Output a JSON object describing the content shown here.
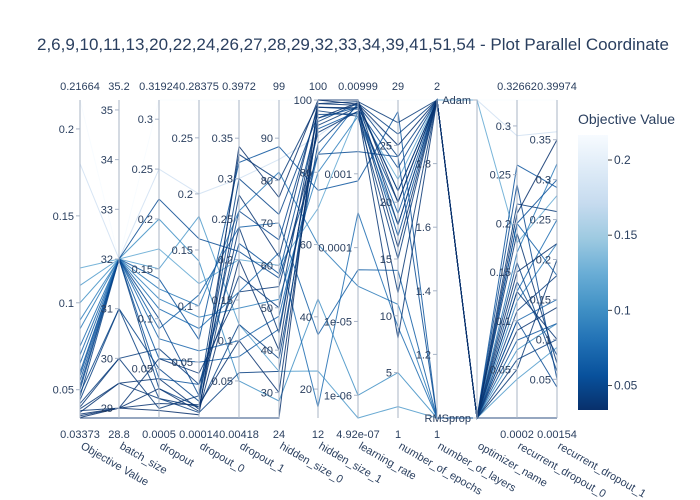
{
  "chart_data": {
    "type": "parallel_coordinates",
    "title": "2,6,9,10,11,13,20,22,24,26,27,28,29,32,33,34,39,41,51,54 - Plot Parallel Coordinate",
    "colorbar": {
      "title": "Objective Value",
      "ticks": [
        "0.2",
        "0.15",
        "0.1",
        "0.05"
      ],
      "tick_values": [
        0.2,
        0.15,
        0.1,
        0.05
      ],
      "range": [
        0.03373,
        0.21664
      ],
      "colorscale": [
        "#08306b",
        "#08519c",
        "#2171b5",
        "#4292c6",
        "#6baed6",
        "#9ecae1",
        "#c6dbef",
        "#deebf7",
        "#f7fbff"
      ]
    },
    "dimensions": [
      {
        "name": "Objective Value",
        "min_label": "0.03373",
        "max_label": "0.21664",
        "min": 0.03373,
        "max": 0.21664,
        "scale": "linear",
        "ticks": [
          {
            "v": 0.2,
            "label": "0.2"
          },
          {
            "v": 0.15,
            "label": "0.15"
          },
          {
            "v": 0.1,
            "label": "0.1"
          },
          {
            "v": 0.05,
            "label": "0.05"
          }
        ]
      },
      {
        "name": "batch_size",
        "min_label": "28.8",
        "max_label": "35.2",
        "min": 28.8,
        "max": 35.2,
        "scale": "linear",
        "ticks": [
          {
            "v": 35,
            "label": "35"
          },
          {
            "v": 34,
            "label": "34"
          },
          {
            "v": 33,
            "label": "33"
          },
          {
            "v": 32,
            "label": "32"
          },
          {
            "v": 31,
            "label": "31"
          },
          {
            "v": 30,
            "label": "30"
          },
          {
            "v": 29,
            "label": "29"
          }
        ]
      },
      {
        "name": "dropout",
        "min_label": "0.0005",
        "max_label": "0.31924",
        "min": 0.0005,
        "max": 0.31924,
        "scale": "linear",
        "ticks": [
          {
            "v": 0.3,
            "label": "0.3"
          },
          {
            "v": 0.25,
            "label": "0.25"
          },
          {
            "v": 0.2,
            "label": "0.2"
          },
          {
            "v": 0.15,
            "label": "0.15"
          },
          {
            "v": 0.1,
            "label": "0.1"
          },
          {
            "v": 0.05,
            "label": "0.05"
          }
        ]
      },
      {
        "name": "dropout_0",
        "min_label": "0.00014",
        "max_label": "0.28375",
        "min": 0.00014,
        "max": 0.28375,
        "scale": "linear",
        "ticks": [
          {
            "v": 0.25,
            "label": "0.25"
          },
          {
            "v": 0.2,
            "label": "0.2"
          },
          {
            "v": 0.15,
            "label": "0.15"
          },
          {
            "v": 0.1,
            "label": "0.1"
          },
          {
            "v": 0.05,
            "label": "0.05"
          }
        ]
      },
      {
        "name": "dropout_1",
        "min_label": "0.00418",
        "max_label": "0.3972",
        "min": 0.00418,
        "max": 0.3972,
        "scale": "linear",
        "ticks": [
          {
            "v": 0.35,
            "label": "0.35"
          },
          {
            "v": 0.3,
            "label": "0.3"
          },
          {
            "v": 0.25,
            "label": "0.25"
          },
          {
            "v": 0.2,
            "label": "0.2"
          },
          {
            "v": 0.15,
            "label": "0.15"
          },
          {
            "v": 0.1,
            "label": "0.1"
          },
          {
            "v": 0.05,
            "label": "0.05"
          }
        ]
      },
      {
        "name": "hidden_size_0",
        "min_label": "24",
        "max_label": "99",
        "min": 24,
        "max": 99,
        "scale": "linear",
        "ticks": [
          {
            "v": 90,
            "label": "90"
          },
          {
            "v": 80,
            "label": "80"
          },
          {
            "v": 70,
            "label": "70"
          },
          {
            "v": 60,
            "label": "60"
          },
          {
            "v": 50,
            "label": "50"
          },
          {
            "v": 40,
            "label": "40"
          },
          {
            "v": 30,
            "label": "30"
          }
        ]
      },
      {
        "name": "hidden_size_1",
        "min_label": "12",
        "max_label": "100",
        "min": 12,
        "max": 100,
        "scale": "linear",
        "ticks": [
          {
            "v": 100,
            "label": "100"
          },
          {
            "v": 80,
            "label": "80"
          },
          {
            "v": 60,
            "label": "60"
          },
          {
            "v": 40,
            "label": "40"
          },
          {
            "v": 20,
            "label": "20"
          }
        ]
      },
      {
        "name": "learning_rate",
        "min_label": "4.92e-07",
        "max_label": "0.00999",
        "min": 4.92e-07,
        "max": 0.00999,
        "scale": "log",
        "ticks": [
          {
            "v": 0.001,
            "label": "0.001"
          },
          {
            "v": 0.0001,
            "label": "0.0001"
          },
          {
            "v": 1e-05,
            "label": "1e-05"
          },
          {
            "v": 1e-06,
            "label": "1e-06"
          }
        ]
      },
      {
        "name": "number_of_epochs",
        "min_label": "1",
        "max_label": "29",
        "min": 1,
        "max": 29,
        "scale": "linear",
        "ticks": [
          {
            "v": 25,
            "label": "25"
          },
          {
            "v": 20,
            "label": "20"
          },
          {
            "v": 15,
            "label": "15"
          },
          {
            "v": 10,
            "label": "10"
          },
          {
            "v": 5,
            "label": "5"
          }
        ]
      },
      {
        "name": "number_of_layers",
        "min_label": "1",
        "max_label": "2",
        "min": 1,
        "max": 2,
        "scale": "linear",
        "ticks": [
          {
            "v": 1.8,
            "label": "1.8"
          },
          {
            "v": 1.6,
            "label": "1.6"
          },
          {
            "v": 1.4,
            "label": "1.4"
          },
          {
            "v": 1.2,
            "label": "1.2"
          }
        ]
      },
      {
        "name": "optimizer_name",
        "min_label": "",
        "max_label": "",
        "min": 0,
        "max": 1,
        "scale": "categorical",
        "ticks": [
          {
            "v": 1,
            "label": "Adam"
          },
          {
            "v": 0,
            "label": "RMSprop"
          }
        ]
      },
      {
        "name": "recurrent_dropout_0",
        "min_label": "0.0002",
        "max_label": "0.32662",
        "min": 0.0002,
        "max": 0.32662,
        "scale": "linear",
        "ticks": [
          {
            "v": 0.3,
            "label": "0.3"
          },
          {
            "v": 0.25,
            "label": "0.25"
          },
          {
            "v": 0.2,
            "label": "0.2"
          },
          {
            "v": 0.15,
            "label": "0.15"
          },
          {
            "v": 0.1,
            "label": "0.1"
          },
          {
            "v": 0.05,
            "label": "0.05"
          }
        ]
      },
      {
        "name": "recurrent_dropout_1",
        "min_label": "0.00154",
        "max_label": "0.39974",
        "min": 0.00154,
        "max": 0.39974,
        "scale": "linear",
        "ticks": [
          {
            "v": 0.35,
            "label": "0.35"
          },
          {
            "v": 0.3,
            "label": "0.3"
          },
          {
            "v": 0.25,
            "label": "0.25"
          },
          {
            "v": 0.2,
            "label": "0.2"
          },
          {
            "v": 0.15,
            "label": "0.15"
          },
          {
            "v": 0.1,
            "label": "0.1"
          },
          {
            "v": 0.05,
            "label": "0.05"
          }
        ]
      }
    ],
    "trials": [
      {
        "objective": 0.21664,
        "values": [
          0.21664,
          32,
          0.31924,
          0.28375,
          0.3972,
          99,
          100,
          0.00999,
          29,
          2,
          1,
          0.32662,
          0.39974
        ]
      },
      {
        "objective": 0.18,
        "values": [
          0.18,
          32,
          0.25,
          0.2,
          0.3,
          85,
          90,
          0.008,
          25,
          2,
          1,
          0.29,
          0.36
        ]
      },
      {
        "objective": 0.12,
        "values": [
          0.12,
          32,
          0.17,
          0.12,
          0.2,
          60,
          70,
          0.007,
          22,
          2,
          1,
          0.18,
          0.28
        ]
      },
      {
        "objective": 0.09,
        "values": [
          0.09,
          32,
          0.12,
          0.09,
          0.14,
          52,
          80,
          0.006,
          18,
          2,
          0,
          0.12,
          0.22
        ]
      },
      {
        "objective": 0.07,
        "values": [
          0.07,
          32,
          0.08,
          0.06,
          0.1,
          48,
          85,
          0.009,
          21,
          2,
          0,
          0.1,
          0.15
        ]
      },
      {
        "objective": 0.06,
        "values": [
          0.06,
          32,
          0.06,
          0.05,
          0.08,
          45,
          92,
          0.007,
          19,
          2,
          0,
          0.08,
          0.12
        ]
      },
      {
        "objective": 0.055,
        "values": [
          0.055,
          32,
          0.04,
          0.03,
          0.22,
          58,
          95,
          0.008,
          17,
          2,
          0,
          0.2,
          0.3
        ]
      },
      {
        "objective": 0.05,
        "values": [
          0.05,
          32,
          0.1,
          0.02,
          0.26,
          66,
          98,
          0.0075,
          23,
          2,
          0,
          0.24,
          0.05
        ]
      },
      {
        "objective": 0.048,
        "values": [
          0.048,
          31,
          0.05,
          0.015,
          0.3,
          72,
          96,
          0.0065,
          20,
          2,
          0,
          0.14,
          0.08
        ]
      },
      {
        "objective": 0.046,
        "values": [
          0.046,
          32,
          0.03,
          0.01,
          0.12,
          38,
          88,
          0.0085,
          24,
          2,
          0,
          0.16,
          0.06
        ]
      },
      {
        "objective": 0.044,
        "values": [
          0.044,
          31,
          0.02,
          0.005,
          0.06,
          35,
          94,
          0.009,
          26,
          2,
          0,
          0.06,
          0.1
        ]
      },
      {
        "objective": 0.042,
        "values": [
          0.042,
          30,
          0.07,
          0.03,
          0.18,
          50,
          97,
          0.006,
          15,
          2,
          0,
          0.11,
          0.18
        ]
      },
      {
        "objective": 0.04,
        "values": [
          0.04,
          30,
          0.01,
          0.02,
          0.33,
          80,
          99,
          0.0095,
          27,
          2,
          0,
          0.22,
          0.26
        ]
      },
      {
        "objective": 0.039,
        "values": [
          0.039,
          29.5,
          0.02,
          0.01,
          0.24,
          44,
          93,
          0.008,
          12,
          2,
          0,
          0.05,
          0.2
        ]
      },
      {
        "objective": 0.038,
        "values": [
          0.038,
          29,
          0.06,
          0.04,
          0.16,
          55,
          91,
          0.007,
          8,
          2,
          0,
          0.13,
          0.1
        ]
      },
      {
        "objective": 0.037,
        "values": [
          0.037,
          29.5,
          0.04,
          0.008,
          0.28,
          62,
          99,
          0.0085,
          21,
          2,
          0,
          0.19,
          0.07
        ]
      },
      {
        "objective": 0.036,
        "values": [
          0.036,
          29,
          0.015,
          0.012,
          0.1,
          30,
          95,
          0.0092,
          18,
          2,
          0,
          0.09,
          0.14
        ]
      },
      {
        "objective": 0.035,
        "values": [
          0.035,
          29,
          0.03,
          0.006,
          0.2,
          40,
          98,
          0.0078,
          16,
          2,
          0,
          0.15,
          0.22
        ]
      },
      {
        "objective": 0.034,
        "values": [
          0.034,
          29,
          0.008,
          0.003,
          0.34,
          76,
          100,
          0.0088,
          25,
          2,
          0,
          0.21,
          0.35
        ]
      },
      {
        "objective": 0.03373,
        "values": [
          0.03373,
          28.8,
          0.0005,
          0.00014,
          0.00418,
          24,
          100,
          0.00999,
          20,
          2,
          0,
          0.0002,
          0.00154
        ]
      },
      {
        "objective": 0.1,
        "values": [
          0.1,
          32,
          0.2,
          0.14,
          0.05,
          28,
          45,
          1e-06,
          5,
          1,
          0,
          0.07,
          0.12
        ]
      },
      {
        "objective": 0.11,
        "values": [
          0.11,
          32,
          0.15,
          0.18,
          0.12,
          35,
          25,
          4.92e-07,
          2,
          1,
          0,
          0.04,
          0.09
        ]
      },
      {
        "objective": 0.085,
        "values": [
          0.085,
          32,
          0.13,
          0.1,
          0.26,
          82,
          60,
          3e-05,
          11,
          1,
          0,
          0.17,
          0.32
        ]
      },
      {
        "objective": 0.075,
        "values": [
          0.075,
          32,
          0.11,
          0.08,
          0.16,
          63,
          15,
          0.0003,
          9,
          1,
          0,
          0.13,
          0.25
        ]
      },
      {
        "objective": 0.065,
        "values": [
          0.065,
          32,
          0.09,
          0.11,
          0.24,
          70,
          35,
          5e-05,
          14,
          1,
          0,
          0.2,
          0.18
        ]
      },
      {
        "objective": 0.058,
        "values": [
          0.058,
          32,
          0.14,
          0.07,
          0.32,
          88,
          75,
          0.0008,
          28,
          1,
          0,
          0.26,
          0.29
        ]
      },
      {
        "objective": 0.052,
        "values": [
          0.052,
          32,
          0.22,
          0.16,
          0.21,
          57,
          85,
          0.002,
          24,
          1,
          0,
          0.1,
          0.04
        ]
      }
    ]
  }
}
